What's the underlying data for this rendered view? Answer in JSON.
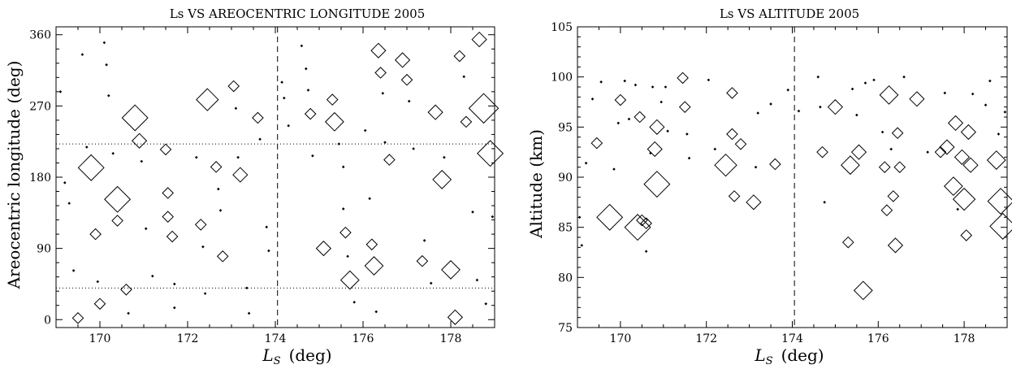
{
  "chart_data": [
    {
      "type": "scatter",
      "title": "Ls VS AREOCENTRIC LONGITUDE 2005",
      "xlabel": "L_S (deg)",
      "xlabel_main": "L",
      "xlabel_sub": "S",
      "xlabel_unit": "(deg)",
      "ylabel": "Areocentric longitude (deg)",
      "xlim": [
        169,
        179
      ],
      "ylim": [
        -10,
        370
      ],
      "xticks": [
        170,
        172,
        174,
        176,
        178
      ],
      "yticks": [
        0,
        90,
        180,
        270,
        360
      ],
      "grid": false,
      "marker": "open diamond, size proportional to magnitude",
      "vline": {
        "x": 174.05,
        "style": "dashed"
      },
      "hlines": [
        {
          "y": 222,
          "style": "dotted"
        },
        {
          "y": 40,
          "style": "dotted"
        }
      ],
      "points": [
        [
          169.1,
          288,
          1
        ],
        [
          169.2,
          173,
          1
        ],
        [
          169.3,
          147,
          1
        ],
        [
          169.4,
          62,
          1
        ],
        [
          169.5,
          2,
          2
        ],
        [
          169.6,
          335,
          1
        ],
        [
          169.7,
          218,
          1
        ],
        [
          169.8,
          192,
          6
        ],
        [
          169.9,
          108,
          2
        ],
        [
          170.0,
          20,
          2
        ],
        [
          169.95,
          48,
          1
        ],
        [
          170.1,
          350,
          1
        ],
        [
          170.15,
          322,
          1
        ],
        [
          170.2,
          283,
          1
        ],
        [
          170.3,
          210,
          1
        ],
        [
          170.4,
          152,
          6
        ],
        [
          170.4,
          125,
          2
        ],
        [
          170.6,
          38,
          2
        ],
        [
          170.65,
          8,
          1
        ],
        [
          170.8,
          255,
          6
        ],
        [
          170.9,
          226,
          3
        ],
        [
          170.95,
          200,
          1
        ],
        [
          171.05,
          115,
          1
        ],
        [
          171.2,
          55,
          1
        ],
        [
          171.5,
          215,
          2
        ],
        [
          171.55,
          160,
          2
        ],
        [
          171.55,
          130,
          2
        ],
        [
          171.65,
          105,
          2
        ],
        [
          171.7,
          45,
          1
        ],
        [
          171.7,
          15,
          1
        ],
        [
          172.2,
          205,
          1
        ],
        [
          172.3,
          120,
          2
        ],
        [
          172.35,
          92,
          1
        ],
        [
          172.4,
          33,
          1
        ],
        [
          172.45,
          278,
          5
        ],
        [
          172.65,
          193,
          2
        ],
        [
          172.7,
          165,
          1
        ],
        [
          172.75,
          138,
          1
        ],
        [
          172.8,
          80,
          2
        ],
        [
          173.05,
          295,
          2
        ],
        [
          173.1,
          267,
          1
        ],
        [
          173.15,
          205,
          1
        ],
        [
          173.2,
          183,
          3
        ],
        [
          173.35,
          40,
          1
        ],
        [
          173.4,
          8,
          1
        ],
        [
          173.6,
          255,
          2
        ],
        [
          173.65,
          228,
          1
        ],
        [
          173.8,
          117,
          1
        ],
        [
          173.85,
          87,
          1
        ],
        [
          174.15,
          300,
          1
        ],
        [
          174.2,
          280,
          1
        ],
        [
          174.3,
          245,
          1
        ],
        [
          174.6,
          346,
          1
        ],
        [
          174.7,
          317,
          1
        ],
        [
          174.75,
          290,
          1
        ],
        [
          174.8,
          260,
          2
        ],
        [
          174.85,
          207,
          1
        ],
        [
          175.1,
          90,
          3
        ],
        [
          175.3,
          278,
          2
        ],
        [
          175.35,
          250,
          4
        ],
        [
          175.45,
          222,
          1
        ],
        [
          175.55,
          193,
          1
        ],
        [
          175.55,
          140,
          1
        ],
        [
          175.6,
          110,
          2
        ],
        [
          175.65,
          80,
          1
        ],
        [
          175.7,
          50,
          4
        ],
        [
          175.8,
          22,
          1
        ],
        [
          176.05,
          239,
          1
        ],
        [
          176.15,
          153,
          1
        ],
        [
          176.2,
          95,
          2
        ],
        [
          176.25,
          68,
          4
        ],
        [
          176.3,
          10,
          1
        ],
        [
          176.35,
          340,
          3
        ],
        [
          176.4,
          312,
          2
        ],
        [
          176.45,
          286,
          1
        ],
        [
          176.5,
          224,
          1
        ],
        [
          176.6,
          202,
          2
        ],
        [
          176.9,
          328,
          3
        ],
        [
          177.0,
          303,
          2
        ],
        [
          177.05,
          276,
          1
        ],
        [
          177.15,
          216,
          1
        ],
        [
          177.35,
          74,
          2
        ],
        [
          177.4,
          100,
          1
        ],
        [
          177.55,
          46,
          1
        ],
        [
          177.65,
          262,
          3
        ],
        [
          177.8,
          177,
          4
        ],
        [
          177.85,
          205,
          1
        ],
        [
          178.0,
          63,
          4
        ],
        [
          178.1,
          3,
          3
        ],
        [
          178.2,
          333,
          2
        ],
        [
          178.3,
          307,
          1
        ],
        [
          178.35,
          250,
          2
        ],
        [
          178.5,
          136,
          1
        ],
        [
          178.6,
          50,
          1
        ],
        [
          178.65,
          354,
          3
        ],
        [
          178.75,
          267,
          7
        ],
        [
          178.8,
          20,
          1
        ],
        [
          178.9,
          210,
          6
        ],
        [
          178.95,
          130,
          1
        ]
      ]
    },
    {
      "type": "scatter",
      "title": "Ls VS ALTITUDE 2005",
      "xlabel": "L_S (deg)",
      "xlabel_main": "L",
      "xlabel_sub": "S",
      "xlabel_unit": "(deg)",
      "ylabel": "Altitude (km)",
      "xlim": [
        169,
        179
      ],
      "ylim": [
        75,
        105
      ],
      "xticks": [
        170,
        172,
        174,
        176,
        178
      ],
      "yticks": [
        75,
        80,
        85,
        90,
        95,
        100,
        105
      ],
      "grid": false,
      "marker": "open diamond, size proportional to magnitude",
      "vline": {
        "x": 174.05,
        "style": "dashed"
      },
      "hlines": [],
      "points": [
        [
          169.05,
          86,
          1
        ],
        [
          169.1,
          83.2,
          1
        ],
        [
          169.2,
          91.4,
          1
        ],
        [
          169.35,
          97.8,
          1
        ],
        [
          169.45,
          93.4,
          2
        ],
        [
          169.55,
          99.5,
          1
        ],
        [
          169.75,
          86,
          6
        ],
        [
          169.85,
          90.8,
          1
        ],
        [
          169.95,
          95.4,
          1
        ],
        [
          170.0,
          97.7,
          2
        ],
        [
          170.1,
          99.6,
          1
        ],
        [
          170.2,
          95.8,
          1
        ],
        [
          170.35,
          99.2,
          1
        ],
        [
          170.4,
          85,
          6
        ],
        [
          170.45,
          96,
          2
        ],
        [
          170.5,
          85.7,
          2
        ],
        [
          170.6,
          85.4,
          2
        ],
        [
          170.6,
          82.6,
          1
        ],
        [
          170.7,
          92.4,
          1
        ],
        [
          170.75,
          99.0,
          1
        ],
        [
          170.8,
          92.8,
          3
        ],
        [
          170.85,
          95,
          3
        ],
        [
          170.85,
          89.3,
          6
        ],
        [
          170.95,
          97.5,
          1
        ],
        [
          171.05,
          99.0,
          1
        ],
        [
          171.1,
          94.6,
          1
        ],
        [
          171.45,
          99.9,
          2
        ],
        [
          171.5,
          97.0,
          2
        ],
        [
          171.55,
          94.3,
          1
        ],
        [
          171.6,
          91.9,
          1
        ],
        [
          172.05,
          99.7,
          1
        ],
        [
          172.2,
          92.8,
          1
        ],
        [
          172.45,
          91.2,
          5
        ],
        [
          172.6,
          94.3,
          2
        ],
        [
          172.6,
          98.4,
          2
        ],
        [
          172.65,
          88.1,
          2
        ],
        [
          172.8,
          93.3,
          2
        ],
        [
          173.1,
          87.5,
          3
        ],
        [
          173.15,
          91.0,
          1
        ],
        [
          173.2,
          96.4,
          1
        ],
        [
          173.5,
          97.3,
          1
        ],
        [
          173.6,
          91.3,
          2
        ],
        [
          173.9,
          98.7,
          1
        ],
        [
          174.15,
          96.6,
          1
        ],
        [
          174.6,
          100.0,
          1
        ],
        [
          174.65,
          97.0,
          1
        ],
        [
          174.7,
          92.5,
          2
        ],
        [
          174.75,
          87.5,
          1
        ],
        [
          175.0,
          97.0,
          3
        ],
        [
          175.3,
          83.5,
          2
        ],
        [
          175.35,
          91.2,
          4
        ],
        [
          175.4,
          98.8,
          1
        ],
        [
          175.5,
          96.2,
          1
        ],
        [
          175.55,
          92.5,
          3
        ],
        [
          175.65,
          78.7,
          4
        ],
        [
          175.7,
          99.4,
          1
        ],
        [
          175.9,
          99.7,
          1
        ],
        [
          176.1,
          94.5,
          1
        ],
        [
          176.15,
          91,
          2
        ],
        [
          176.2,
          86.7,
          2
        ],
        [
          176.25,
          98.2,
          4
        ],
        [
          176.3,
          92.8,
          1
        ],
        [
          176.35,
          88.1,
          2
        ],
        [
          176.4,
          83.2,
          3
        ],
        [
          176.45,
          94.4,
          2
        ],
        [
          176.5,
          91.0,
          2
        ],
        [
          176.6,
          100.0,
          1
        ],
        [
          176.9,
          97.8,
          3
        ],
        [
          177.15,
          92.5,
          1
        ],
        [
          177.45,
          92.5,
          2
        ],
        [
          177.55,
          98.4,
          1
        ],
        [
          177.6,
          93.0,
          3
        ],
        [
          177.75,
          89.1,
          4
        ],
        [
          177.8,
          95.4,
          3
        ],
        [
          177.85,
          86.8,
          1
        ],
        [
          177.95,
          92.0,
          3
        ],
        [
          178.0,
          87.8,
          5
        ],
        [
          178.05,
          84.2,
          2
        ],
        [
          178.1,
          94.5,
          3
        ],
        [
          178.15,
          91.2,
          3
        ],
        [
          178.2,
          98.3,
          1
        ],
        [
          178.5,
          97.2,
          1
        ],
        [
          178.6,
          99.6,
          1
        ],
        [
          178.75,
          91.7,
          4
        ],
        [
          178.8,
          94.3,
          1
        ],
        [
          178.85,
          87.6,
          6
        ],
        [
          178.9,
          85.1,
          6
        ],
        [
          178.95,
          96.5,
          1
        ]
      ]
    }
  ]
}
